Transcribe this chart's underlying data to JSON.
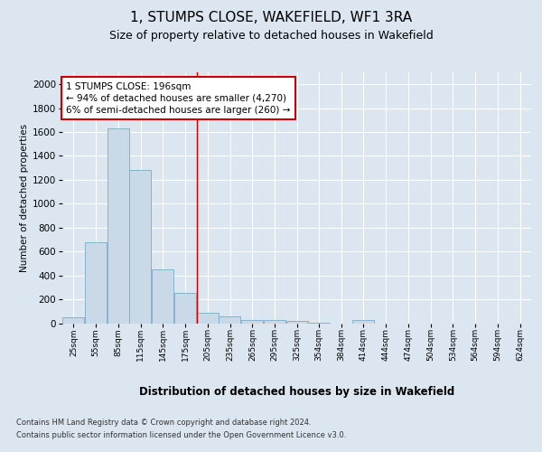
{
  "title": "1, STUMPS CLOSE, WAKEFIELD, WF1 3RA",
  "subtitle": "Size of property relative to detached houses in Wakefield",
  "xlabel": "Distribution of detached houses by size in Wakefield",
  "ylabel": "Number of detached properties",
  "footnote1": "Contains HM Land Registry data © Crown copyright and database right 2024.",
  "footnote2": "Contains public sector information licensed under the Open Government Licence v3.0.",
  "property_size": 196,
  "property_label": "1 STUMPS CLOSE: 196sqm",
  "annotation_line1": "← 94% of detached houses are smaller (4,270)",
  "annotation_line2": "6% of semi-detached houses are larger (260) →",
  "bar_color": "#c9d9e8",
  "bar_edge_color": "#7aaac8",
  "vline_color": "#cc0000",
  "annotation_box_edge_color": "#cc0000",
  "background_color": "#dce6f0",
  "grid_color": "#ffffff",
  "bins": [
    25,
    55,
    85,
    115,
    145,
    175,
    205,
    235,
    265,
    295,
    325,
    354,
    384,
    414,
    444,
    474,
    504,
    534,
    564,
    594,
    624
  ],
  "bin_labels": [
    "25sqm",
    "55sqm",
    "85sqm",
    "115sqm",
    "145sqm",
    "175sqm",
    "205sqm",
    "235sqm",
    "265sqm",
    "295sqm",
    "325sqm",
    "354sqm",
    "384sqm",
    "414sqm",
    "444sqm",
    "474sqm",
    "504sqm",
    "534sqm",
    "564sqm",
    "594sqm",
    "624sqm"
  ],
  "values": [
    50,
    680,
    1630,
    1280,
    450,
    255,
    90,
    55,
    30,
    25,
    20,
    5,
    0,
    25,
    0,
    0,
    0,
    0,
    0,
    0,
    0
  ],
  "ylim": [
    0,
    2100
  ],
  "yticks": [
    0,
    200,
    400,
    600,
    800,
    1000,
    1200,
    1400,
    1600,
    1800,
    2000
  ],
  "bin_width": 30
}
